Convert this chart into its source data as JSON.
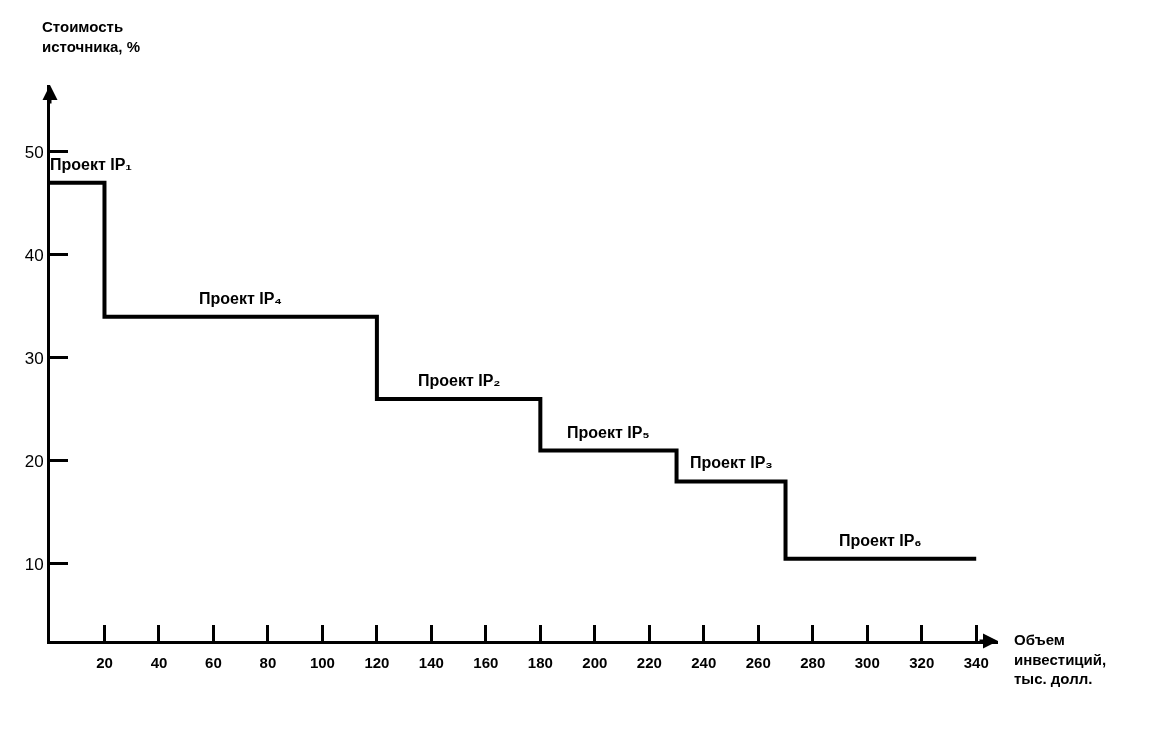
{
  "chart_data": {
    "type": "step",
    "xlabel": "Объем инвестиций, тыс. долл.",
    "ylabel": "Стоимость источника, %",
    "x": [
      0,
      20,
      120,
      180,
      230,
      270,
      340
    ],
    "series": [
      {
        "color": "#000000",
        "values": [
          47,
          34,
          26,
          21,
          18,
          10.5,
          10.5
        ]
      }
    ],
    "xlim": [
      0,
      348
    ],
    "xticks": [
      20,
      40,
      60,
      80,
      100,
      120,
      140,
      160,
      180,
      200,
      220,
      240,
      260,
      280,
      300,
      320,
      340
    ],
    "ylim": [
      2.5,
      56.5
    ],
    "yticks": [
      10,
      20,
      30,
      40,
      50
    ],
    "marker": "none",
    "line_style": "solid",
    "annotations": [
      {
        "text": "Проект IP₁",
        "x": 15,
        "y": 47
      },
      {
        "text": "Проект IP₄",
        "x": 70,
        "y": 34
      },
      {
        "text": "Проект IP₂",
        "x": 150,
        "y": 26
      },
      {
        "text": "Проект IP₅",
        "x": 205,
        "y": 21
      },
      {
        "text": "Проект IP₃",
        "x": 250,
        "y": 18
      },
      {
        "text": "Проект IP₆",
        "x": 305,
        "y": 10.5
      }
    ]
  }
}
